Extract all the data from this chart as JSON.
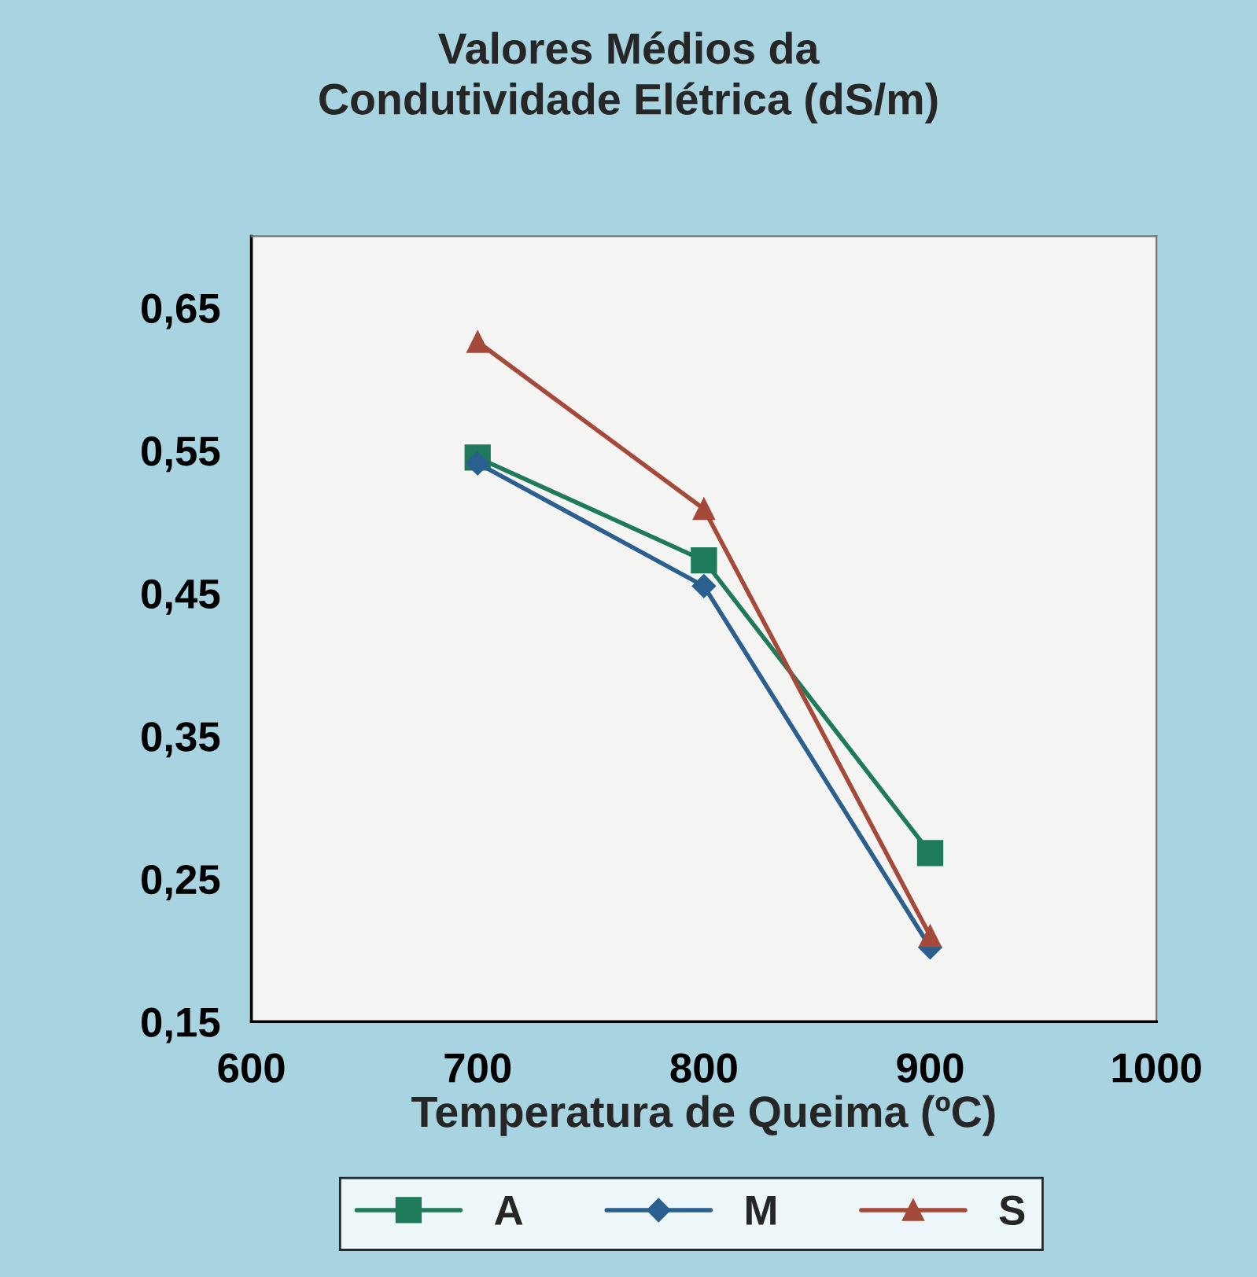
{
  "chart_data": {
    "type": "line",
    "title": "Valores Médios da\nCondutividade Elétrica (dS/m)",
    "xlabel": "Temperatura de Queima (ºC)",
    "x": [
      700,
      800,
      900
    ],
    "series": [
      {
        "name": "A",
        "color": "#1e7a5a",
        "marker": "square",
        "values": [
          0.545,
          0.473,
          0.268
        ]
      },
      {
        "name": "M",
        "color": "#2a5f8f",
        "marker": "diamond",
        "values": [
          0.541,
          0.455,
          0.202
        ]
      },
      {
        "name": "S",
        "color": "#a5493a",
        "marker": "triangle",
        "values": [
          0.626,
          0.509,
          0.21
        ]
      }
    ],
    "xlim": [
      600,
      1000
    ],
    "xticks": [
      600,
      700,
      800,
      900,
      1000
    ],
    "ylim": [
      0.15,
      0.7
    ],
    "yticks": [
      {
        "value": 0.15,
        "label": "0,15"
      },
      {
        "value": 0.25,
        "label": "0,25"
      },
      {
        "value": 0.35,
        "label": "0,35"
      },
      {
        "value": 0.45,
        "label": "0,45"
      },
      {
        "value": 0.55,
        "label": "0,55"
      },
      {
        "value": 0.65,
        "label": "0,65"
      }
    ],
    "legend": "bottom",
    "line_style": "solid"
  }
}
